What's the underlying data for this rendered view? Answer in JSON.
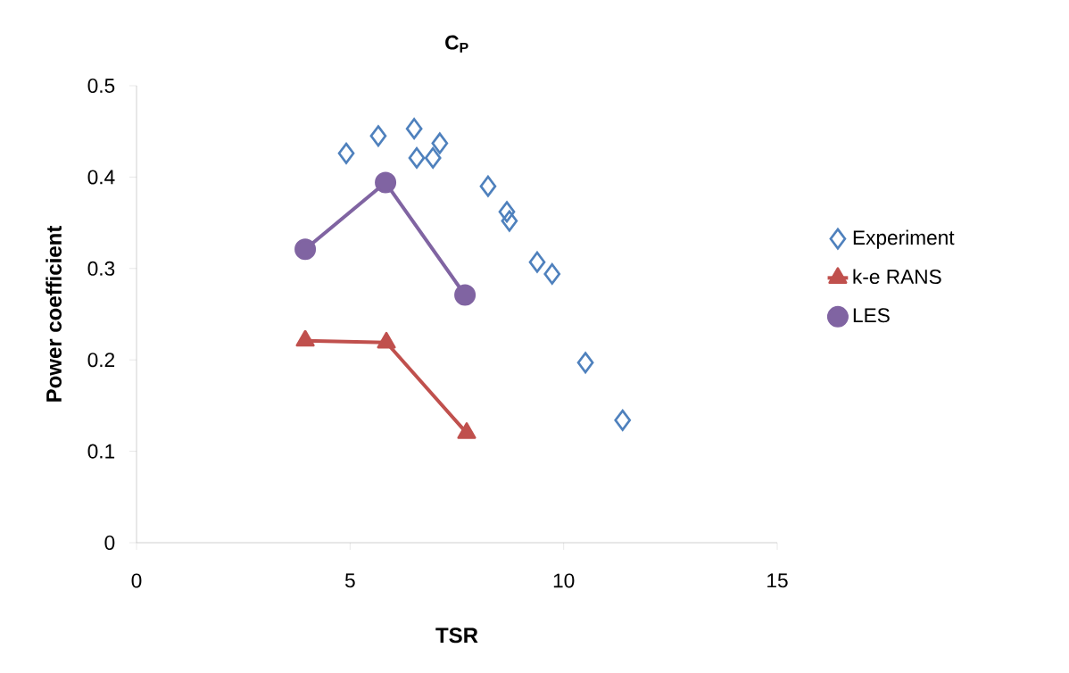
{
  "chart_data": {
    "type": "scatter",
    "title": "C$_{P}$",
    "xlabel": "TSR",
    "ylabel": "Power coefficient",
    "xlim": [
      0,
      15
    ],
    "xticks": [
      0,
      5,
      10,
      15
    ],
    "ylim": [
      0,
      0.5
    ],
    "yticks": [
      0,
      0.1,
      0.2,
      0.3,
      0.4,
      0.5
    ],
    "grid": false,
    "legend": "right",
    "series": [
      {
        "name": "Experiment",
        "marker": "diamond",
        "color": "#4f81bd",
        "x": [
          4.91,
          5.66,
          6.5,
          6.56,
          6.94,
          7.1,
          8.23,
          8.67,
          8.73,
          9.38,
          9.73,
          10.51,
          11.38
        ],
        "values": [
          0.426,
          0.445,
          0.453,
          0.421,
          0.421,
          0.437,
          0.39,
          0.362,
          0.352,
          0.307,
          0.294,
          0.197,
          0.134
        ]
      },
      {
        "name": "k-e RANS",
        "type": "line",
        "marker": "triangle",
        "color": "#c0504d",
        "x": [
          3.95,
          5.85,
          7.73
        ],
        "values": [
          0.221,
          0.219,
          0.12
        ]
      },
      {
        "name": "LES",
        "type": "line",
        "marker": "circle",
        "color": "#8064a2",
        "x": [
          3.95,
          5.83,
          7.69
        ],
        "values": [
          0.321,
          0.394,
          0.271
        ]
      }
    ]
  }
}
